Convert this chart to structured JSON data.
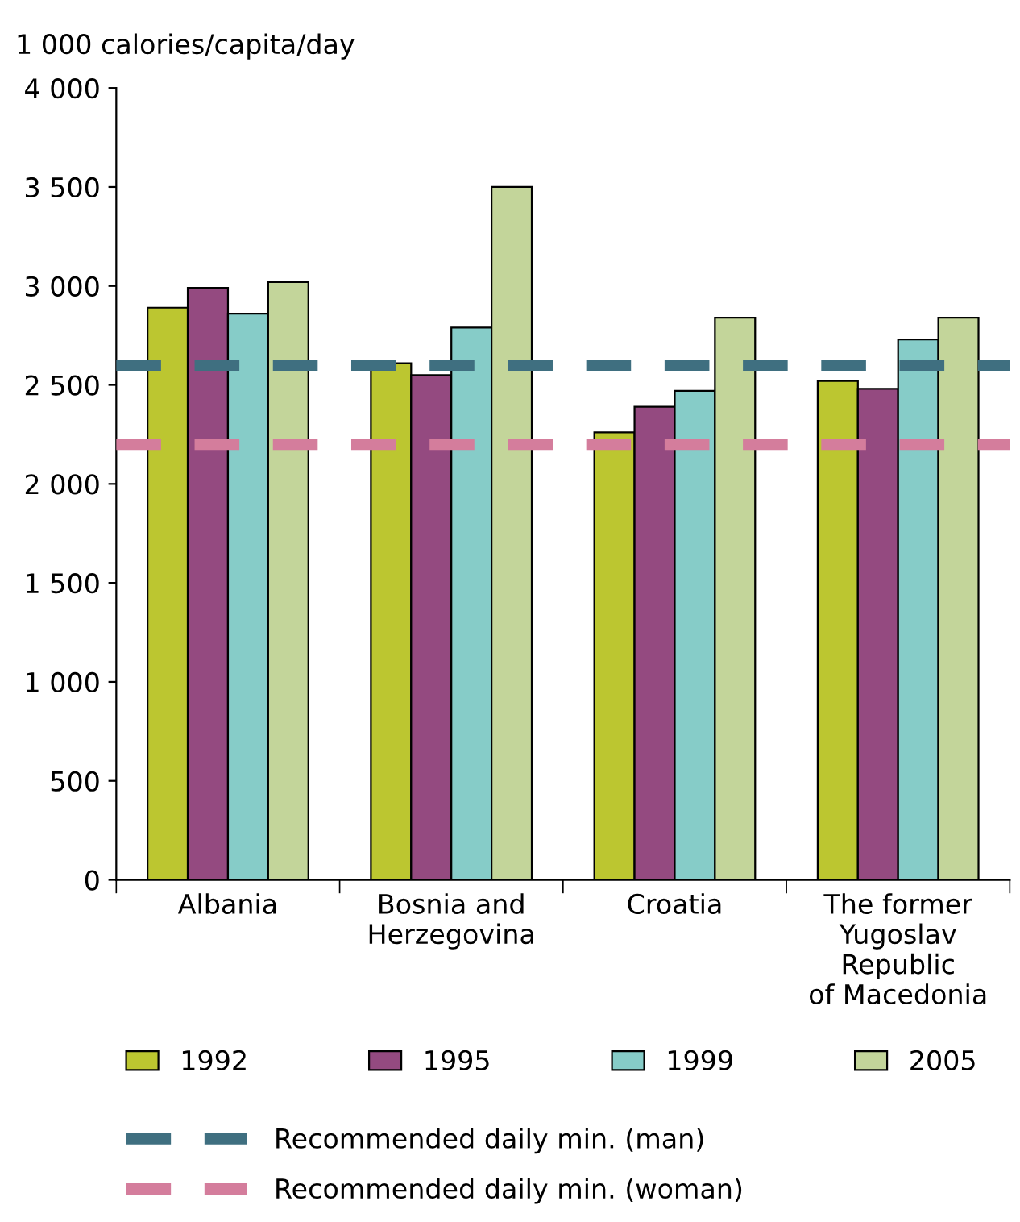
{
  "chart_data": {
    "type": "bar",
    "ylabel": "1 000 calories/capita/day",
    "categories": [
      "Albania",
      "Bosnia and\nHerzegovina",
      "Croatia",
      "The former\nYugoslav\nRepublic\nof Macedonia"
    ],
    "series": [
      {
        "name": "1992",
        "color": "#bcc630",
        "values": [
          2890,
          2610,
          2260,
          2520
        ]
      },
      {
        "name": "1995",
        "color": "#944a80",
        "values": [
          2990,
          2550,
          2390,
          2480
        ]
      },
      {
        "name": "1999",
        "color": "#86ccc8",
        "values": [
          2860,
          2790,
          2470,
          2730
        ]
      },
      {
        "name": "2005",
        "color": "#c3d59a",
        "values": [
          3020,
          3500,
          2840,
          2840
        ]
      }
    ],
    "ylim": [
      0,
      4000
    ],
    "yticks": [
      0,
      500,
      {
        "value": 1000,
        "label": "1 000"
      },
      {
        "value": 1500,
        "label": "1 500"
      },
      {
        "value": 2000,
        "label": "2 000"
      },
      {
        "value": 2500,
        "label": "2 500"
      },
      {
        "value": 3000,
        "label": "3 000"
      },
      {
        "value": 3500,
        "label": "3 500"
      },
      {
        "value": 4000,
        "label": "4 000"
      }
    ],
    "ref_lines": [
      {
        "axis": "y",
        "value": 2600,
        "label": "Recommended daily min. (man)",
        "color": "#3f6f80",
        "line_style": "dashed"
      },
      {
        "axis": "y",
        "value": 2200,
        "label": "Recommended daily min. (woman)",
        "color": "#d47d9c",
        "line_style": "dashed"
      }
    ],
    "grid": false,
    "legend": "bottom"
  }
}
